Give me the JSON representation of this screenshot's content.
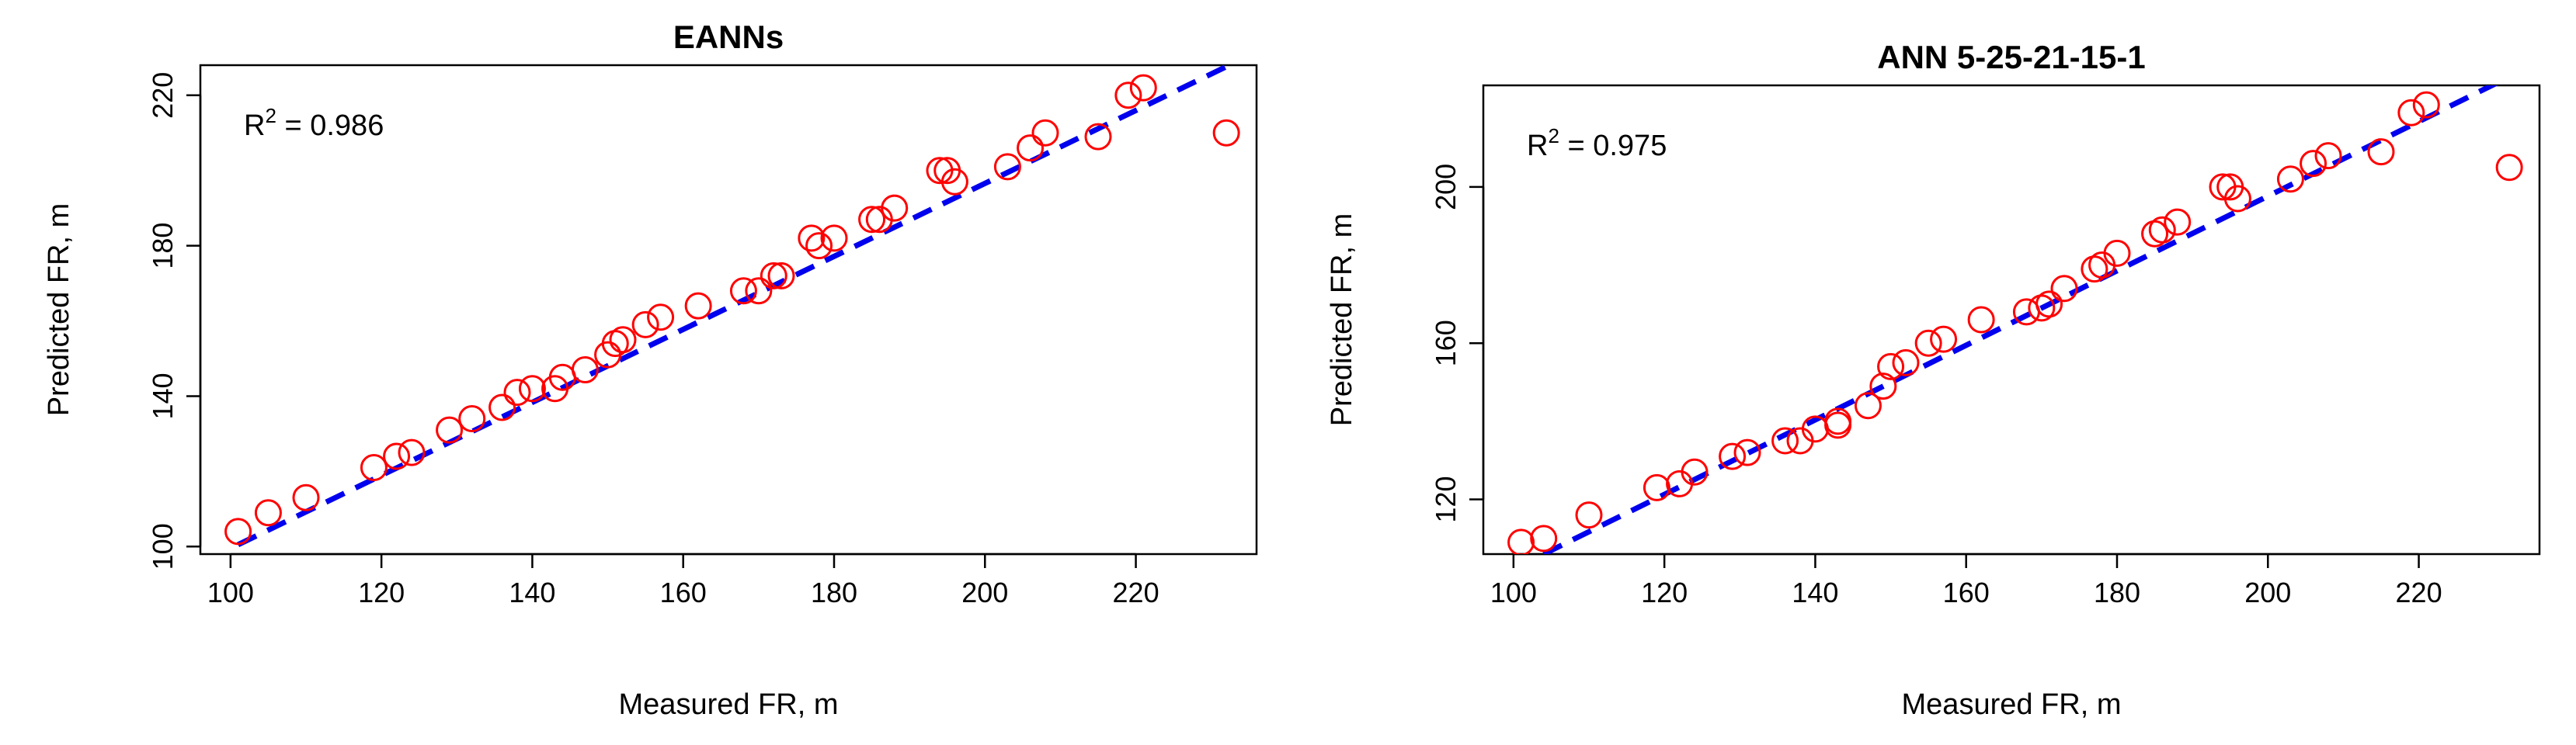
{
  "chart_data": [
    {
      "type": "scatter",
      "title": "EANNs",
      "xlabel": "Measured FR, m",
      "ylabel": "Predicted FR, m",
      "xlim": [
        96,
        236
      ],
      "ylim": [
        98,
        228
      ],
      "xticks": [
        100,
        120,
        140,
        160,
        180,
        200,
        220
      ],
      "yticks": [
        100,
        140,
        180,
        220
      ],
      "annotation": {
        "prefix": "R",
        "sup": "2",
        "value": " = 0.986"
      },
      "fit_line": {
        "x": [
          101,
          236
        ],
        "y": [
          100.5,
          231.5
        ]
      },
      "colors": {
        "points": "#ff0000",
        "fit_line": "#0000ee"
      },
      "grid": false,
      "points": [
        {
          "x": 101,
          "y": 104
        },
        {
          "x": 105,
          "y": 109
        },
        {
          "x": 110,
          "y": 113
        },
        {
          "x": 119,
          "y": 121
        },
        {
          "x": 122,
          "y": 124
        },
        {
          "x": 124,
          "y": 125
        },
        {
          "x": 129,
          "y": 131
        },
        {
          "x": 132,
          "y": 134
        },
        {
          "x": 136,
          "y": 137
        },
        {
          "x": 138,
          "y": 141
        },
        {
          "x": 140,
          "y": 142
        },
        {
          "x": 143,
          "y": 142
        },
        {
          "x": 144,
          "y": 145
        },
        {
          "x": 147,
          "y": 147
        },
        {
          "x": 150,
          "y": 151
        },
        {
          "x": 151,
          "y": 154
        },
        {
          "x": 152,
          "y": 155
        },
        {
          "x": 155,
          "y": 159
        },
        {
          "x": 157,
          "y": 161
        },
        {
          "x": 162,
          "y": 164
        },
        {
          "x": 168,
          "y": 168
        },
        {
          "x": 170,
          "y": 168
        },
        {
          "x": 172,
          "y": 172
        },
        {
          "x": 173,
          "y": 172
        },
        {
          "x": 177,
          "y": 182
        },
        {
          "x": 178,
          "y": 180
        },
        {
          "x": 180,
          "y": 182
        },
        {
          "x": 185,
          "y": 187
        },
        {
          "x": 186,
          "y": 187
        },
        {
          "x": 188,
          "y": 190
        },
        {
          "x": 194,
          "y": 200
        },
        {
          "x": 195,
          "y": 200
        },
        {
          "x": 196,
          "y": 197
        },
        {
          "x": 203,
          "y": 201
        },
        {
          "x": 206,
          "y": 206
        },
        {
          "x": 208,
          "y": 210
        },
        {
          "x": 215,
          "y": 209
        },
        {
          "x": 219,
          "y": 220
        },
        {
          "x": 221,
          "y": 222
        },
        {
          "x": 232,
          "y": 210
        }
      ]
    },
    {
      "type": "scatter",
      "title": "ANN 5-25-21-15-1",
      "xlabel": "Measured FR, m",
      "ylabel": "Predicted FR, m",
      "xlim": [
        96,
        236
      ],
      "ylim": [
        106,
        226
      ],
      "xticks": [
        100,
        120,
        140,
        160,
        180,
        200,
        220
      ],
      "yticks": [
        120,
        160,
        200
      ],
      "annotation": {
        "prefix": "R",
        "sup": "2",
        "value": " = 0.975"
      },
      "fit_line": {
        "x": [
          104,
          236
        ],
        "y": [
          106,
          232
        ]
      },
      "colors": {
        "points": "#ff0000",
        "fit_line": "#0000ee"
      },
      "grid": false,
      "points": [
        {
          "x": 101,
          "y": 109
        },
        {
          "x": 104,
          "y": 110
        },
        {
          "x": 110,
          "y": 116
        },
        {
          "x": 119,
          "y": 123
        },
        {
          "x": 122,
          "y": 124
        },
        {
          "x": 124,
          "y": 127
        },
        {
          "x": 129,
          "y": 131
        },
        {
          "x": 131,
          "y": 132
        },
        {
          "x": 136,
          "y": 135
        },
        {
          "x": 138,
          "y": 135
        },
        {
          "x": 140,
          "y": 138
        },
        {
          "x": 143,
          "y": 139
        },
        {
          "x": 143,
          "y": 140
        },
        {
          "x": 147,
          "y": 144
        },
        {
          "x": 149,
          "y": 149
        },
        {
          "x": 150,
          "y": 154
        },
        {
          "x": 152,
          "y": 155
        },
        {
          "x": 155,
          "y": 160
        },
        {
          "x": 157,
          "y": 161
        },
        {
          "x": 162,
          "y": 166
        },
        {
          "x": 168,
          "y": 168
        },
        {
          "x": 170,
          "y": 169
        },
        {
          "x": 171,
          "y": 170
        },
        {
          "x": 173,
          "y": 174
        },
        {
          "x": 177,
          "y": 179
        },
        {
          "x": 178,
          "y": 180
        },
        {
          "x": 180,
          "y": 183
        },
        {
          "x": 185,
          "y": 188
        },
        {
          "x": 186,
          "y": 189
        },
        {
          "x": 188,
          "y": 191
        },
        {
          "x": 194,
          "y": 200
        },
        {
          "x": 195,
          "y": 200
        },
        {
          "x": 196,
          "y": 197
        },
        {
          "x": 203,
          "y": 202
        },
        {
          "x": 206,
          "y": 206
        },
        {
          "x": 208,
          "y": 208
        },
        {
          "x": 215,
          "y": 209
        },
        {
          "x": 219,
          "y": 219
        },
        {
          "x": 221,
          "y": 221
        },
        {
          "x": 232,
          "y": 205
        }
      ]
    }
  ]
}
